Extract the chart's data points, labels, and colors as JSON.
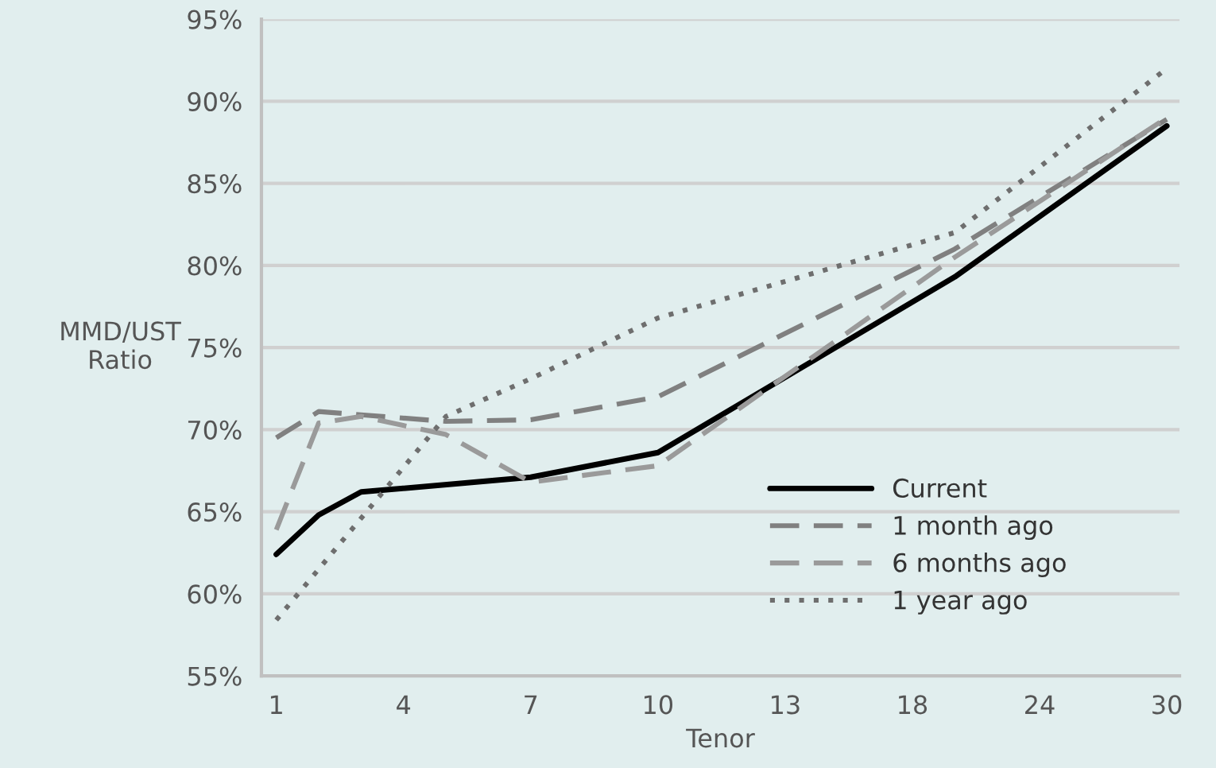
{
  "chart_data": {
    "type": "line",
    "xlabel": "Tenor",
    "ylabel": "MMD/UST\nRatio",
    "categories": [
      "1",
      null,
      null,
      "4",
      null,
      null,
      "7",
      null,
      null,
      "10",
      null,
      null,
      "13",
      null,
      null,
      "18",
      null,
      null,
      "24",
      null,
      null,
      "30"
    ],
    "series": [
      {
        "name": "Current",
        "color": "#000000",
        "line_style": "solid",
        "values": [
          62.4,
          64.8,
          66.2,
          null,
          null,
          null,
          67.1,
          null,
          null,
          68.6,
          null,
          null,
          null,
          null,
          null,
          null,
          79.3,
          null,
          null,
          null,
          null,
          88.5
        ]
      },
      {
        "name": "1 month ago",
        "color": "#808080",
        "line_style": "dashed",
        "values": [
          69.5,
          71.1,
          70.9,
          null,
          70.5,
          null,
          70.6,
          null,
          null,
          72.0,
          null,
          null,
          null,
          null,
          null,
          null,
          81.0,
          null,
          null,
          null,
          null,
          88.9
        ]
      },
      {
        "name": "6 months ago",
        "color": "#9a9a9a",
        "line_style": "dashed",
        "values": [
          63.9,
          70.4,
          70.8,
          null,
          69.7,
          null,
          66.8,
          null,
          null,
          67.8,
          null,
          null,
          null,
          null,
          null,
          null,
          80.5,
          null,
          null,
          null,
          null,
          89.0
        ]
      },
      {
        "name": "1 year ago",
        "color": "#6e6e6e",
        "line_style": "dotted",
        "values": [
          58.4,
          null,
          null,
          null,
          70.8,
          null,
          73.1,
          null,
          null,
          76.8,
          null,
          null,
          null,
          null,
          null,
          null,
          82.0,
          null,
          null,
          null,
          null,
          92.0
        ]
      }
    ],
    "ylim": [
      55,
      95
    ],
    "yticks": [
      {
        "value": 55,
        "label": "55%"
      },
      {
        "value": 60,
        "label": "60%"
      },
      {
        "value": 65,
        "label": "65%"
      },
      {
        "value": 70,
        "label": "70%"
      },
      {
        "value": 75,
        "label": "75%"
      },
      {
        "value": 80,
        "label": "80%"
      },
      {
        "value": 85,
        "label": "85%"
      },
      {
        "value": 90,
        "label": "90%"
      },
      {
        "value": 95,
        "label": "95%"
      }
    ],
    "grid": "y",
    "legend": "bottom right",
    "marker": "none"
  }
}
